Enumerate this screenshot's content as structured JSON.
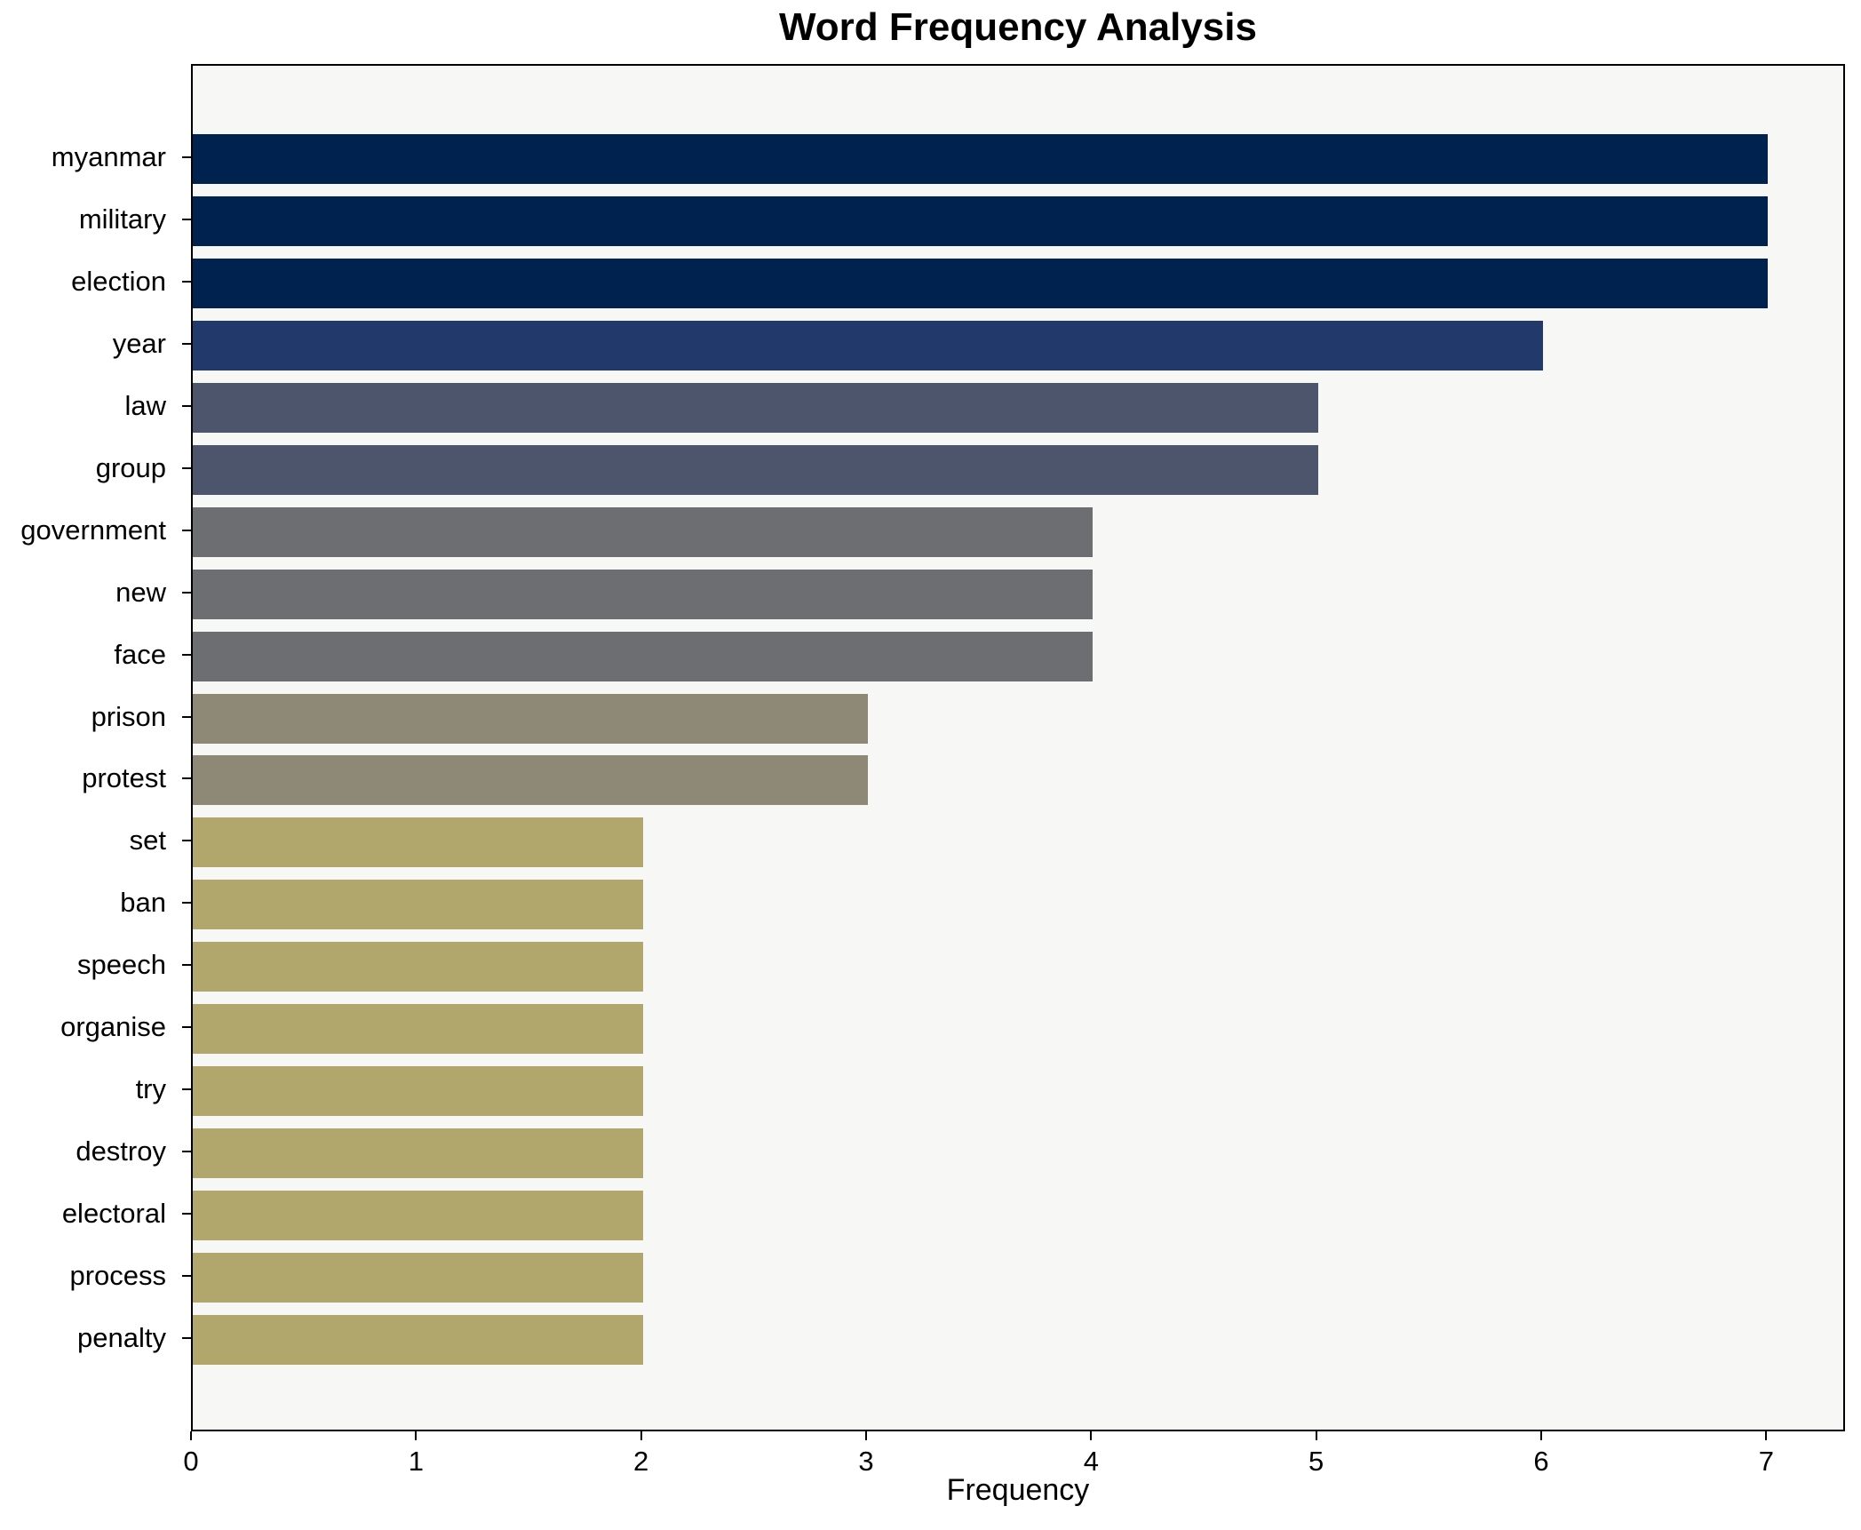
{
  "chart_data": {
    "type": "bar",
    "orientation": "horizontal",
    "title": "Word Frequency Analysis",
    "xlabel": "Frequency",
    "ylabel": "",
    "categories": [
      "myanmar",
      "military",
      "election",
      "year",
      "law",
      "group",
      "government",
      "new",
      "face",
      "prison",
      "protest",
      "set",
      "ban",
      "speech",
      "organise",
      "try",
      "destroy",
      "electoral",
      "process",
      "penalty"
    ],
    "values": [
      7,
      7,
      7,
      6,
      5,
      5,
      4,
      4,
      4,
      3,
      3,
      2,
      2,
      2,
      2,
      2,
      2,
      2,
      2,
      2
    ],
    "bar_colors": [
      "#00224e",
      "#00224e",
      "#00224e",
      "#223a6b",
      "#4c556c",
      "#4c556c",
      "#6c6e72",
      "#6c6e72",
      "#6c6e72",
      "#8e8876",
      "#8e8876",
      "#b1a76c",
      "#b1a76c",
      "#b1a76c",
      "#b1a76c",
      "#b1a76c",
      "#b1a76c",
      "#b1a76c",
      "#b1a76c",
      "#b1a76c"
    ],
    "xlim": [
      0,
      7.35
    ],
    "xticks": [
      0,
      1,
      2,
      3,
      4,
      5,
      6,
      7
    ],
    "grid": false,
    "legend": "none",
    "plot_background": "#f7f7f6",
    "figure_background": "#ffffff",
    "spine_color": "#000000"
  }
}
